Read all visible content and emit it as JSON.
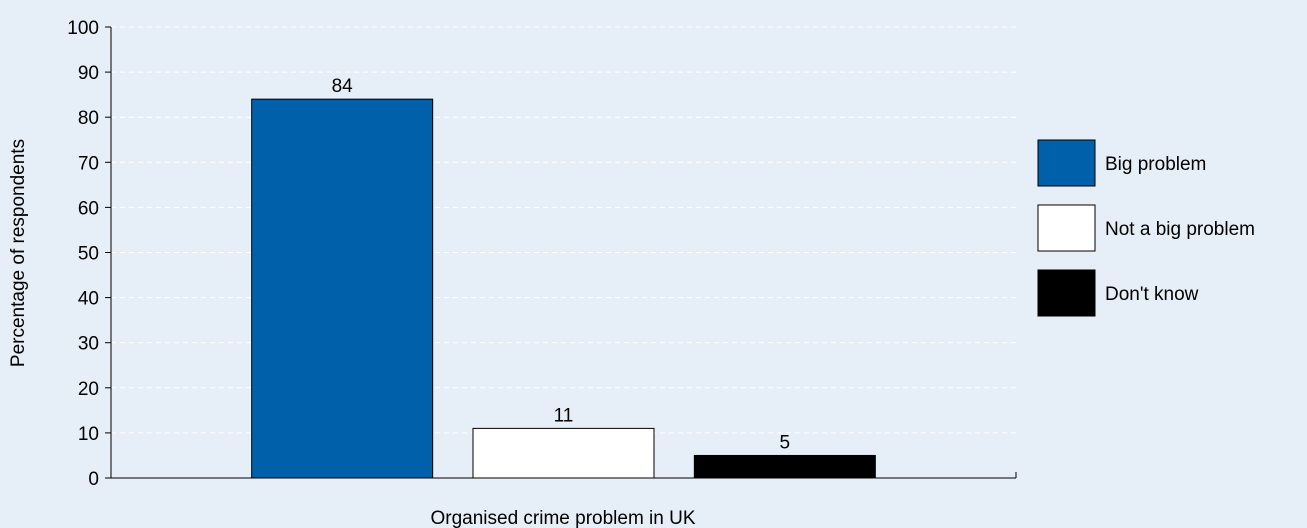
{
  "chart_data": {
    "type": "bar",
    "title": "",
    "xlabel": "Organised crime problem in UK",
    "ylabel": "Percentage of respondents",
    "ylim": [
      0,
      100
    ],
    "yticks": [
      0,
      10,
      20,
      30,
      40,
      50,
      60,
      70,
      80,
      90,
      100
    ],
    "grid": "dashed horizontal",
    "legend_position": "right",
    "series": [
      {
        "name": "Big problem",
        "value": 84,
        "color": "#0060aa"
      },
      {
        "name": "Not a big problem",
        "value": 11,
        "color": "#ffffff"
      },
      {
        "name": "Don't know",
        "value": 5,
        "color": "#000000"
      }
    ]
  }
}
